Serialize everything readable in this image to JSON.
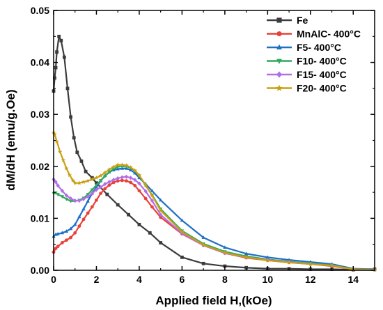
{
  "chart_data": {
    "type": "line",
    "xlabel": "Applied field H,(kOe)",
    "ylabel": "dM/dH (emu/g.Oe)",
    "xlim": [
      0,
      15
    ],
    "ylim": [
      0,
      0.05
    ],
    "x_ticks": [
      "0",
      "2",
      "4",
      "6",
      "8",
      "10",
      "12",
      "14"
    ],
    "y_ticks": [
      "0.00",
      "0.01",
      "0.02",
      "0.03",
      "0.04",
      "0.05"
    ],
    "x_minor_ticks": [
      1,
      3,
      5,
      7,
      9,
      11,
      13,
      15
    ],
    "y_minor_ticks": [
      0.005,
      0.015,
      0.025,
      0.035,
      0.045
    ],
    "grid": false,
    "legend_position": "top-right",
    "series": [
      {
        "name": "Fe",
        "color": "#3c3c3c",
        "marker": "square",
        "points": [
          [
            0,
            0.0345
          ],
          [
            0.05,
            0.037
          ],
          [
            0.1,
            0.039
          ],
          [
            0.15,
            0.042
          ],
          [
            0.25,
            0.045
          ],
          [
            0.35,
            0.0442
          ],
          [
            0.5,
            0.041
          ],
          [
            0.65,
            0.035
          ],
          [
            0.8,
            0.0295
          ],
          [
            0.95,
            0.0255
          ],
          [
            1.1,
            0.0227
          ],
          [
            1.3,
            0.021
          ],
          [
            1.5,
            0.019
          ],
          [
            1.8,
            0.0178
          ],
          [
            2.0,
            0.0168
          ],
          [
            2.5,
            0.0146
          ],
          [
            3.0,
            0.0126
          ],
          [
            3.5,
            0.0107
          ],
          [
            4.0,
            0.0088
          ],
          [
            4.5,
            0.0072
          ],
          [
            5.0,
            0.0053
          ],
          [
            6.0,
            0.0025
          ],
          [
            7.0,
            0.0013
          ],
          [
            8.0,
            0.0008
          ],
          [
            9.0,
            0.0005
          ],
          [
            10.0,
            0.0003
          ],
          [
            11.0,
            0.0003
          ],
          [
            12.0,
            0.0002
          ],
          [
            13.0,
            0.0002
          ],
          [
            14.0,
            0.0001
          ],
          [
            15.0,
            0.0002
          ]
        ]
      },
      {
        "name": "MnAlC- 400°C",
        "color": "#e8413a",
        "marker": "circle",
        "points": [
          [
            0,
            0.0035
          ],
          [
            0.1,
            0.0042
          ],
          [
            0.2,
            0.0046
          ],
          [
            0.4,
            0.0053
          ],
          [
            0.6,
            0.0058
          ],
          [
            0.8,
            0.0063
          ],
          [
            1.0,
            0.0072
          ],
          [
            1.2,
            0.0085
          ],
          [
            1.4,
            0.0098
          ],
          [
            1.6,
            0.011
          ],
          [
            1.8,
            0.0122
          ],
          [
            2.0,
            0.0135
          ],
          [
            2.2,
            0.0148
          ],
          [
            2.4,
            0.0157
          ],
          [
            2.6,
            0.0164
          ],
          [
            2.8,
            0.0169
          ],
          [
            3.0,
            0.0172
          ],
          [
            3.2,
            0.0173
          ],
          [
            3.4,
            0.0172
          ],
          [
            3.6,
            0.0169
          ],
          [
            3.8,
            0.0163
          ],
          [
            4.0,
            0.0153
          ],
          [
            4.3,
            0.0138
          ],
          [
            4.6,
            0.0122
          ],
          [
            5.0,
            0.0102
          ],
          [
            6.0,
            0.007
          ],
          [
            7.0,
            0.0048
          ],
          [
            8.0,
            0.0033
          ],
          [
            9.0,
            0.0024
          ],
          [
            10.0,
            0.0019
          ],
          [
            11.0,
            0.0015
          ],
          [
            12.0,
            0.0012
          ],
          [
            13.0,
            0.0008
          ],
          [
            14.0,
            0.0002
          ],
          [
            15.0,
            0.0001
          ]
        ]
      },
      {
        "name": "F5- 400°C",
        "color": "#1f6fc5",
        "marker": "triangle",
        "points": [
          [
            0,
            0.0065
          ],
          [
            0.1,
            0.0069
          ],
          [
            0.2,
            0.007
          ],
          [
            0.4,
            0.0072
          ],
          [
            0.6,
            0.0075
          ],
          [
            0.8,
            0.008
          ],
          [
            1.0,
            0.0088
          ],
          [
            1.2,
            0.0103
          ],
          [
            1.4,
            0.0118
          ],
          [
            1.6,
            0.0133
          ],
          [
            1.8,
            0.0148
          ],
          [
            2.0,
            0.016
          ],
          [
            2.2,
            0.0172
          ],
          [
            2.4,
            0.0182
          ],
          [
            2.6,
            0.0189
          ],
          [
            2.8,
            0.0193
          ],
          [
            3.0,
            0.0195
          ],
          [
            3.2,
            0.0196
          ],
          [
            3.4,
            0.0196
          ],
          [
            3.6,
            0.0193
          ],
          [
            3.8,
            0.0187
          ],
          [
            4.0,
            0.0178
          ],
          [
            4.3,
            0.0166
          ],
          [
            4.6,
            0.0153
          ],
          [
            5.0,
            0.0135
          ],
          [
            6.0,
            0.0096
          ],
          [
            7.0,
            0.0063
          ],
          [
            8.0,
            0.0044
          ],
          [
            9.0,
            0.0032
          ],
          [
            10.0,
            0.0025
          ],
          [
            11.0,
            0.002
          ],
          [
            12.0,
            0.0016
          ],
          [
            13.0,
            0.0012
          ],
          [
            14.0,
            0.0003
          ],
          [
            15.0,
            0.0002
          ]
        ]
      },
      {
        "name": "F10- 400°C",
        "color": "#2eaa5a",
        "marker": "triangle-down",
        "points": [
          [
            0,
            0.0148
          ],
          [
            0.1,
            0.0149
          ],
          [
            0.2,
            0.0146
          ],
          [
            0.4,
            0.0142
          ],
          [
            0.6,
            0.0137
          ],
          [
            0.8,
            0.0133
          ],
          [
            1.0,
            0.0133
          ],
          [
            1.2,
            0.0135
          ],
          [
            1.4,
            0.0139
          ],
          [
            1.6,
            0.0146
          ],
          [
            1.8,
            0.0155
          ],
          [
            2.0,
            0.0164
          ],
          [
            2.2,
            0.0173
          ],
          [
            2.4,
            0.0181
          ],
          [
            2.6,
            0.0189
          ],
          [
            2.8,
            0.0195
          ],
          [
            3.0,
            0.0199
          ],
          [
            3.2,
            0.02
          ],
          [
            3.4,
            0.02
          ],
          [
            3.6,
            0.0197
          ],
          [
            3.8,
            0.0191
          ],
          [
            4.0,
            0.0182
          ],
          [
            4.3,
            0.0163
          ],
          [
            4.6,
            0.0145
          ],
          [
            5.0,
            0.0118
          ],
          [
            6.0,
            0.0076
          ],
          [
            7.0,
            0.0051
          ],
          [
            8.0,
            0.0036
          ],
          [
            9.0,
            0.0027
          ],
          [
            10.0,
            0.0021
          ],
          [
            11.0,
            0.0017
          ],
          [
            12.0,
            0.0013
          ],
          [
            13.0,
            0.001
          ],
          [
            14.0,
            0.0002
          ],
          [
            15.0,
            0.0001
          ]
        ]
      },
      {
        "name": "F15- 400°C",
        "color": "#b26ee6",
        "marker": "diamond",
        "points": [
          [
            0,
            0.0175
          ],
          [
            0.1,
            0.017
          ],
          [
            0.2,
            0.0163
          ],
          [
            0.4,
            0.0153
          ],
          [
            0.6,
            0.0144
          ],
          [
            0.8,
            0.0138
          ],
          [
            1.0,
            0.0134
          ],
          [
            1.2,
            0.0134
          ],
          [
            1.4,
            0.0137
          ],
          [
            1.6,
            0.0142
          ],
          [
            1.8,
            0.0148
          ],
          [
            2.0,
            0.0155
          ],
          [
            2.2,
            0.016
          ],
          [
            2.4,
            0.0166
          ],
          [
            2.6,
            0.017
          ],
          [
            2.8,
            0.0174
          ],
          [
            3.0,
            0.0177
          ],
          [
            3.2,
            0.0179
          ],
          [
            3.4,
            0.018
          ],
          [
            3.6,
            0.0178
          ],
          [
            3.8,
            0.0174
          ],
          [
            4.0,
            0.0167
          ],
          [
            4.3,
            0.0152
          ],
          [
            4.6,
            0.0134
          ],
          [
            5.0,
            0.0107
          ],
          [
            6.0,
            0.0071
          ],
          [
            7.0,
            0.0048
          ],
          [
            8.0,
            0.0033
          ],
          [
            9.0,
            0.0025
          ],
          [
            10.0,
            0.002
          ],
          [
            11.0,
            0.0016
          ],
          [
            12.0,
            0.0012
          ],
          [
            13.0,
            0.0009
          ],
          [
            14.0,
            0.0002
          ],
          [
            15.0,
            0.0001
          ]
        ]
      },
      {
        "name": "F20- 400°C",
        "color": "#c9a011",
        "marker": "star",
        "points": [
          [
            0,
            0.0265
          ],
          [
            0.05,
            0.0262
          ],
          [
            0.15,
            0.0248
          ],
          [
            0.3,
            0.0228
          ],
          [
            0.45,
            0.0212
          ],
          [
            0.6,
            0.0196
          ],
          [
            0.75,
            0.0183
          ],
          [
            0.9,
            0.0173
          ],
          [
            1.0,
            0.0168
          ],
          [
            1.2,
            0.0168
          ],
          [
            1.4,
            0.017
          ],
          [
            1.6,
            0.0172
          ],
          [
            1.8,
            0.0175
          ],
          [
            2.0,
            0.0178
          ],
          [
            2.2,
            0.0182
          ],
          [
            2.4,
            0.0188
          ],
          [
            2.6,
            0.0194
          ],
          [
            2.8,
            0.0199
          ],
          [
            3.0,
            0.0203
          ],
          [
            3.2,
            0.0203
          ],
          [
            3.4,
            0.0202
          ],
          [
            3.6,
            0.0198
          ],
          [
            3.8,
            0.0192
          ],
          [
            4.0,
            0.0183
          ],
          [
            4.3,
            0.0164
          ],
          [
            4.6,
            0.0144
          ],
          [
            5.0,
            0.0115
          ],
          [
            6.0,
            0.0074
          ],
          [
            7.0,
            0.0049
          ],
          [
            8.0,
            0.0034
          ],
          [
            9.0,
            0.0025
          ],
          [
            10.0,
            0.0019
          ],
          [
            11.0,
            0.0015
          ],
          [
            12.0,
            0.0012
          ],
          [
            13.0,
            0.0009
          ],
          [
            14.0,
            0.0002
          ],
          [
            15.0,
            0.0001
          ]
        ]
      }
    ]
  }
}
